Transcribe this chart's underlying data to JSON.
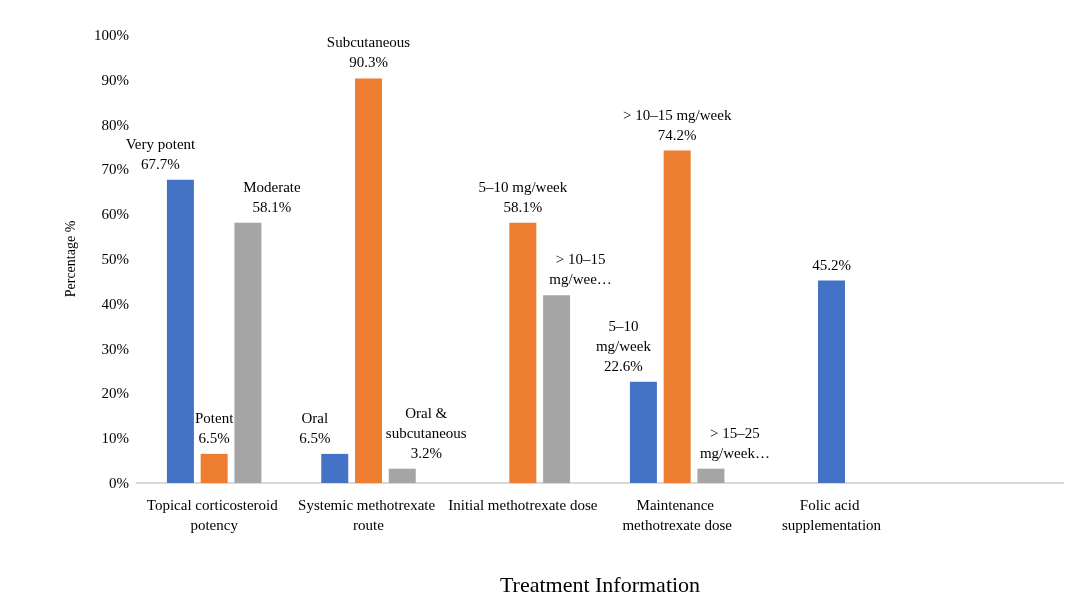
{
  "chart_data": {
    "type": "bar",
    "xlabel": "Treatment Information",
    "ylabel": "Percentage %",
    "categories": [
      "Topical corticosteroid potency",
      "Systemic methotrexate route",
      "Initial methotrexate dose",
      "Maintenance methotrexate dose",
      "Folic acid supplementation",
      null
    ],
    "series": [
      {
        "color": "#4472c4",
        "values": [
          67.7,
          6.5,
          null,
          22.6,
          null,
          null
        ],
        "value_labels": [
          "Very potent\n67.7%",
          "Oral\n6.5%",
          null,
          "5–10\nmg/week\n22.6%",
          null,
          null
        ]
      },
      {
        "color": "#ed7d31",
        "colors": [
          "#ed7d31",
          "#ed7d31",
          "#ed7d31",
          "#ed7d31",
          "#4472c4",
          "#ed7d31"
        ],
        "values": [
          6.5,
          90.3,
          58.1,
          74.2,
          45.2,
          null
        ],
        "value_labels": [
          "Potent\n6.5%",
          "Subcutaneous\n90.3%",
          "5–10 mg/week\n58.1%",
          "> 10–15 mg/week\n74.2%",
          "45.2%",
          null
        ]
      },
      {
        "color": "#a5a5a5",
        "values": [
          58.1,
          3.2,
          41.9,
          3.2,
          null,
          null
        ],
        "value_labels": [
          "Moderate\n58.1%",
          "Oral &\nsubcutaneous\n3.2%",
          "> 10–15\nmg/wee…",
          "> 15–25\nmg/week…",
          null,
          null
        ]
      }
    ],
    "ylim": [
      0,
      100
    ],
    "yticks": [
      {
        "value": 0,
        "label": "0%"
      },
      {
        "value": 10,
        "label": "10%"
      },
      {
        "value": 20,
        "label": "20%"
      },
      {
        "value": 30,
        "label": "30%"
      },
      {
        "value": 40,
        "label": "40%"
      },
      {
        "value": 50,
        "label": "50%"
      },
      {
        "value": 60,
        "label": "60%"
      },
      {
        "value": 70,
        "label": "70%"
      },
      {
        "value": 80,
        "label": "80%"
      },
      {
        "value": 90,
        "label": "90%"
      },
      {
        "value": 100,
        "label": "100%"
      }
    ],
    "grid": false
  }
}
